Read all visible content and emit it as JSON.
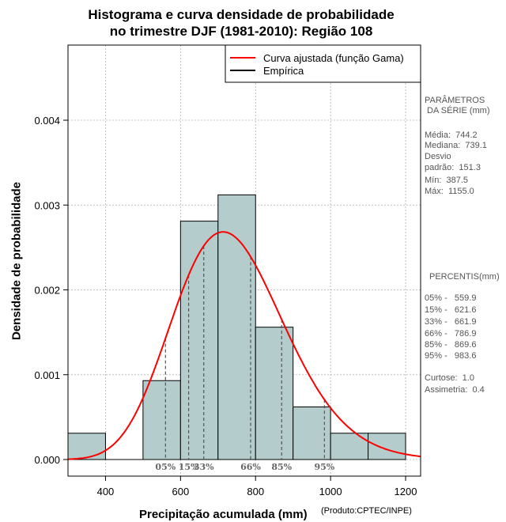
{
  "chart_data": {
    "type": "histogram",
    "title_line1": "Histograma e curva densidade de probabilidade",
    "title_line2": "no trimestre DJF (1981-2010): Região 108",
    "xlabel": "Precipitação acumulada (mm)",
    "ylabel": "Densidade de probabilidade",
    "credit": "(Produto:CPTEC/INPE)",
    "xlim": [
      300,
      1240
    ],
    "ylim": [
      0,
      0.0049
    ],
    "x_ticks": [
      400,
      600,
      800,
      1000,
      1200
    ],
    "x_tick_labels": [
      "400",
      "600",
      "800",
      "1000",
      "1200"
    ],
    "y_ticks": [
      0,
      0.001,
      0.002,
      0.003,
      0.004
    ],
    "y_tick_labels": [
      "0.000",
      "0.001",
      "0.002",
      "0.003",
      "0.004"
    ],
    "grid": true,
    "bar_color": "#b4cccc",
    "curve_color": "#ff0000",
    "bins": [
      {
        "from": 300,
        "to": 400,
        "density": 0.00031
      },
      {
        "from": 400,
        "to": 500,
        "density": 0
      },
      {
        "from": 500,
        "to": 600,
        "density": 0.00093
      },
      {
        "from": 600,
        "to": 700,
        "density": 0.00281
      },
      {
        "from": 700,
        "to": 800,
        "density": 0.00312
      },
      {
        "from": 800,
        "to": 900,
        "density": 0.00156
      },
      {
        "from": 900,
        "to": 1000,
        "density": 0.00062
      },
      {
        "from": 1000,
        "to": 1100,
        "density": 0.00031
      },
      {
        "from": 1100,
        "to": 1200,
        "density": 0.00031
      }
    ],
    "gamma_fit": {
      "mean": 744.2,
      "sd": 151.3
    },
    "percentile_markers": [
      {
        "label": "05%",
        "x": 559.9
      },
      {
        "label": "15%",
        "x": 621.6
      },
      {
        "label": "33%",
        "x": 661.9
      },
      {
        "label": "66%",
        "x": 786.9
      },
      {
        "label": "85%",
        "x": 869.6
      },
      {
        "label": "95%",
        "x": 983.6
      }
    ],
    "legend": {
      "position": "top-right",
      "entries": [
        {
          "label": "Curva ajustada (função Gama)",
          "color": "#ff0000"
        },
        {
          "label": "Empírica",
          "color": "#000000"
        }
      ]
    }
  },
  "stats_panel": {
    "header_line1": "PARÂMETROS",
    "header_line2": " DA SÉRIE (mm)",
    "media": "Média:  744.2",
    "mediana": "Mediana:  739.1",
    "desvio1": "Desvio",
    "desvio2": "padrão:  151.3",
    "min": "Mín:  387.5",
    "max": "Máx:  1155.0"
  },
  "percentis_panel": {
    "header": "PERCENTIS(mm)",
    "p05": "05% -   559.9",
    "p15": "15% -   621.6",
    "p33": "33% -   661.9",
    "p66": "66% -   786.9",
    "p85": "85% -   869.6",
    "p95": "95% -   983.6",
    "curtose": "Curtose:  1.0",
    "assimetria": "Assimetria:  0.4"
  }
}
